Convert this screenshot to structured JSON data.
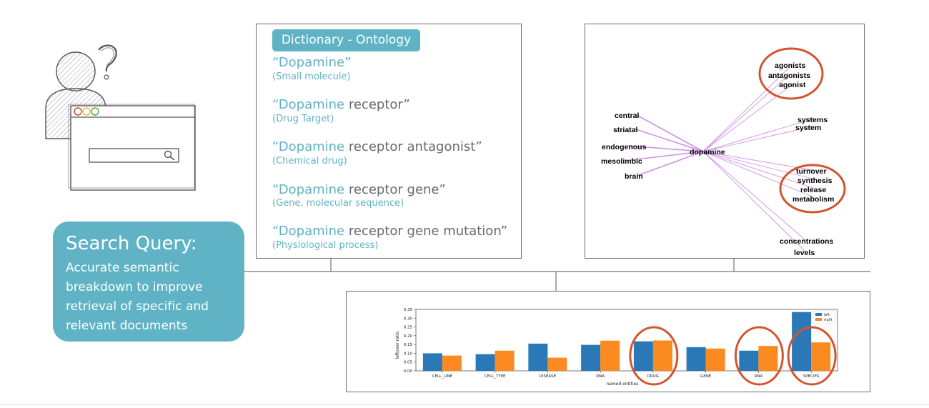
{
  "dictionary": {
    "header": "Dictionary - Ontology",
    "items": [
      {
        "prefix": "“Dopamine",
        "suffix": "”",
        "category": "(Small molecule)"
      },
      {
        "prefix": "“Dopamine",
        "suffix": " receptor”",
        "category": "(Drug Target)"
      },
      {
        "prefix": "“Dopamine",
        "suffix": " receptor antagonist”",
        "category": "(Chemical drug)"
      },
      {
        "prefix": "“Dopamine",
        "suffix": " receptor gene”",
        "category": "(Gene, molecular sequence)"
      },
      {
        "prefix": "“Dopamine",
        "suffix": " receptor gene mutation”",
        "category": "(Physiological process)"
      }
    ]
  },
  "query": {
    "title": "Search Query:",
    "description": "Accurate semantic breakdown to improve retrieval of specific and relevant documents"
  },
  "network": {
    "center": "dopamine",
    "left": [
      "central",
      "striatal",
      "endogenous",
      "mesolimbic",
      "brain"
    ],
    "right": [
      "agonists",
      "antagonists",
      "agonist",
      "systems",
      "system",
      "turnover",
      "synthesis",
      "release",
      "metabolism",
      "concentrations",
      "levels"
    ],
    "edge_color": "#c77ee0",
    "circle_color": "#d4542c"
  },
  "chart_data": {
    "type": "bar",
    "categories": [
      "CELL_LINE",
      "CELL_TYPE",
      "DISEASE",
      "DNA",
      "DRUG",
      "GENE",
      "RNA",
      "SPECIES"
    ],
    "series": [
      {
        "name": "left",
        "values": [
          0.1,
          0.095,
          0.155,
          0.148,
          0.168,
          0.135,
          0.115,
          0.335
        ],
        "color": "#2a78b5"
      },
      {
        "name": "right",
        "values": [
          0.087,
          0.115,
          0.075,
          0.172,
          0.173,
          0.127,
          0.142,
          0.162
        ],
        "color": "#fb8a20"
      }
    ],
    "xlabel": "named entities",
    "ylabel": "leftover ratio",
    "ylim": [
      0,
      0.35
    ],
    "yticks": [
      "0.00",
      "0.05",
      "0.10",
      "0.15",
      "0.20",
      "0.25",
      "0.30",
      "0.35"
    ],
    "legend": "top-right",
    "highlighted": [
      "DRUG",
      "RNA",
      "SPECIES"
    ]
  }
}
